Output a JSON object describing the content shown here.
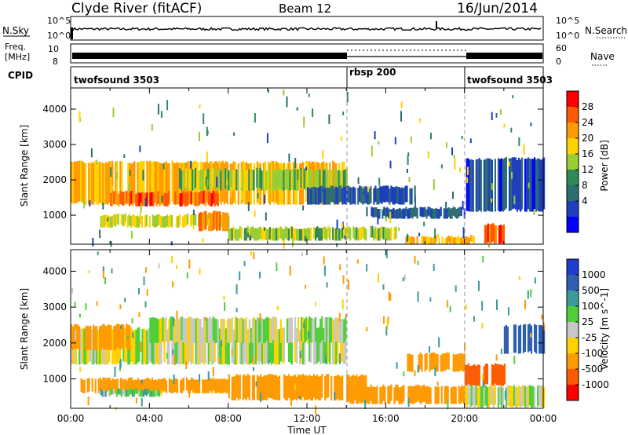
{
  "header": {
    "station": "Clyde River (fitACF)",
    "beam": "Beam 12",
    "date": "16/Jun/2014"
  },
  "strips": {
    "nsky_label": "N.Sky",
    "nsky_ticks": [
      "10^5",
      "10^0"
    ],
    "nsearch_label": "N.Search",
    "freq_label_line1": "Freq.",
    "freq_label_line2": "[MHz]",
    "freq_ticks": [
      "10",
      "8"
    ],
    "nave_ticks": [
      "60",
      "0"
    ],
    "nave_label": "Nave",
    "cpid_label": "CPID",
    "cpid_segments": [
      {
        "start_hour": 0,
        "end_hour": 14,
        "label": "twofsound 3503"
      },
      {
        "start_hour": 14,
        "end_hour": 20,
        "label": "rbsp 200"
      },
      {
        "start_hour": 20,
        "end_hour": 24,
        "label": "twofsound 3503"
      }
    ]
  },
  "axes": {
    "ylabel": "Slant Range [km]",
    "xlabel": "Time UT",
    "yticks": [
      "4000",
      "3000",
      "2000",
      "1000"
    ],
    "xticks": [
      "00:00",
      "04:00",
      "08:00",
      "12:00",
      "16:00",
      "20:00",
      "00:00"
    ]
  },
  "power_colorbar": {
    "label": "Power [dB]",
    "ticks": [
      "28",
      "24",
      "20",
      "16",
      "12",
      "8",
      "4"
    ],
    "colors": [
      "#ff0000",
      "#ff5a00",
      "#ff9a00",
      "#ffd200",
      "#9acd32",
      "#2e8b57",
      "#2d6e6e",
      "#1f3fbf",
      "#0000ff"
    ]
  },
  "velocity_colorbar": {
    "label": "Velocity [m s^-1]",
    "ticks": [
      "1000",
      "500",
      "100",
      "25",
      "-25",
      "-100",
      "-500",
      "-1000"
    ],
    "colors": [
      "#1f3ccf",
      "#2f5fb0",
      "#3d9a9a",
      "#4fcf3a",
      "#c8c8c8",
      "#ffd200",
      "#ff9a00",
      "#ff5a00",
      "#ff0000"
    ]
  },
  "chart_data": [
    {
      "type": "heatmap",
      "panel": "power",
      "xlabel": "Time UT",
      "ylabel": "Slant Range [km]",
      "xlim": [
        0,
        24
      ],
      "ylim": [
        180,
        4600
      ],
      "zlabel": "Power [dB]",
      "zlim": [
        0,
        32
      ],
      "bands": [
        {
          "t_start": 0.0,
          "t_end": 14.0,
          "r_min": 1300,
          "r_max": 2500,
          "power": 24
        },
        {
          "t_start": 2.0,
          "t_end": 7.5,
          "r_min": 1250,
          "r_max": 1650,
          "power": 30
        },
        {
          "t_start": 5.5,
          "t_end": 14.0,
          "r_min": 1700,
          "r_max": 2300,
          "power": 18
        },
        {
          "t_start": 1.5,
          "t_end": 8.0,
          "r_min": 650,
          "r_max": 1000,
          "power": 20
        },
        {
          "t_start": 6.5,
          "t_end": 8.0,
          "r_min": 550,
          "r_max": 1100,
          "power": 28
        },
        {
          "t_start": 8.0,
          "t_end": 16.5,
          "r_min": 280,
          "r_max": 650,
          "power": 18
        },
        {
          "t_start": 12.0,
          "t_end": 17.5,
          "r_min": 1300,
          "r_max": 1800,
          "power": 8
        },
        {
          "t_start": 15.0,
          "t_end": 20.0,
          "r_min": 900,
          "r_max": 1200,
          "power": 8
        },
        {
          "t_start": 17.0,
          "t_end": 20.5,
          "r_min": 180,
          "r_max": 400,
          "power": 24
        },
        {
          "t_start": 21.0,
          "t_end": 22.0,
          "r_min": 200,
          "r_max": 750,
          "power": 30
        },
        {
          "t_start": 20.0,
          "t_end": 24.0,
          "r_min": 1100,
          "r_max": 2600,
          "power": 6
        }
      ]
    },
    {
      "type": "heatmap",
      "panel": "velocity",
      "xlabel": "Time UT",
      "ylabel": "Slant Range [km]",
      "xlim": [
        0,
        24
      ],
      "ylim": [
        180,
        4600
      ],
      "zlabel": "Velocity [m s^-1]",
      "zlim": [
        -1000,
        1000
      ],
      "bands": [
        {
          "t_start": 0.0,
          "t_end": 14.0,
          "r_min": 1400,
          "r_max": 2400,
          "velocity": 0
        },
        {
          "t_start": 4.0,
          "t_end": 14.0,
          "r_min": 2000,
          "r_max": 2700,
          "velocity": 0
        },
        {
          "t_start": 0.0,
          "t_end": 3.0,
          "r_min": 1800,
          "r_max": 2500,
          "velocity": -300
        },
        {
          "t_start": 0.5,
          "t_end": 8.0,
          "r_min": 600,
          "r_max": 1000,
          "velocity": -200
        },
        {
          "t_start": 8.0,
          "t_end": 15.0,
          "r_min": 400,
          "r_max": 1100,
          "velocity": -300
        },
        {
          "t_start": 14.0,
          "t_end": 20.0,
          "r_min": 300,
          "r_max": 800,
          "velocity": -400
        },
        {
          "t_start": 17.0,
          "t_end": 20.0,
          "r_min": 1200,
          "r_max": 1700,
          "velocity": -200
        },
        {
          "t_start": 20.0,
          "t_end": 22.0,
          "r_min": 800,
          "r_max": 1400,
          "velocity": -600
        },
        {
          "t_start": 22.0,
          "t_end": 24.0,
          "r_min": 1700,
          "r_max": 2500,
          "velocity": 700
        },
        {
          "t_start": 20.0,
          "t_end": 24.0,
          "r_min": 200,
          "r_max": 800,
          "velocity": 0
        },
        {
          "t_start": 1.5,
          "t_end": 4.5,
          "r_min": 500,
          "r_max": 700,
          "velocity": 60
        }
      ]
    }
  ]
}
